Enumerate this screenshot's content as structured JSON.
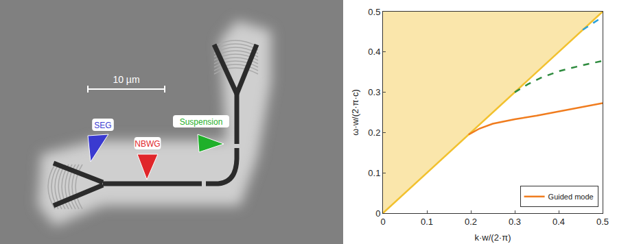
{
  "chart_data": {
    "type": "line",
    "xlabel": "k·w/(2·π)",
    "ylabel": "ω·w/(2·π·c)",
    "xlim": [
      0,
      0.5
    ],
    "xticks": [
      0,
      0.1,
      0.2,
      0.3,
      0.4,
      0.5
    ],
    "ylim": [
      0,
      0.5
    ],
    "yticks": [
      0,
      0.1,
      0.2,
      0.3,
      0.4,
      0.5
    ],
    "grid": false,
    "legend": "lower right",
    "series": [
      {
        "type": "area",
        "color": "#f2c12e",
        "line_style": "solid",
        "x": [
          0,
          0.5
        ],
        "values": [
          0,
          0.5
        ]
      },
      {
        "name": "Guided mode",
        "type": "line",
        "color": "#f07c1e",
        "line_style": "solid",
        "x": [
          0.195,
          0.2,
          0.22,
          0.25,
          0.3,
          0.35,
          0.4,
          0.45,
          0.5
        ],
        "values": [
          0.195,
          0.198,
          0.21,
          0.222,
          0.233,
          0.242,
          0.252,
          0.262,
          0.273
        ]
      },
      {
        "type": "line",
        "color": "#2e8b3e",
        "line_style": "dashed",
        "x": [
          0.3,
          0.33,
          0.36,
          0.4,
          0.45,
          0.5
        ],
        "values": [
          0.3,
          0.32,
          0.336,
          0.352,
          0.366,
          0.378
        ]
      },
      {
        "type": "line",
        "color": "#2aa0d8",
        "line_style": "dashed",
        "x": [
          0.455,
          0.47,
          0.485,
          0.5
        ],
        "values": [
          0.455,
          0.466,
          0.477,
          0.487
        ]
      }
    ]
  },
  "micrograph": {
    "scale_bar": "10 µm",
    "labels": [
      {
        "text": "SEG",
        "color": "#3a3ad0"
      },
      {
        "text": "NBWG",
        "color": "#e0262a"
      },
      {
        "text": "Suspension",
        "color": "#1fb02a"
      }
    ]
  }
}
